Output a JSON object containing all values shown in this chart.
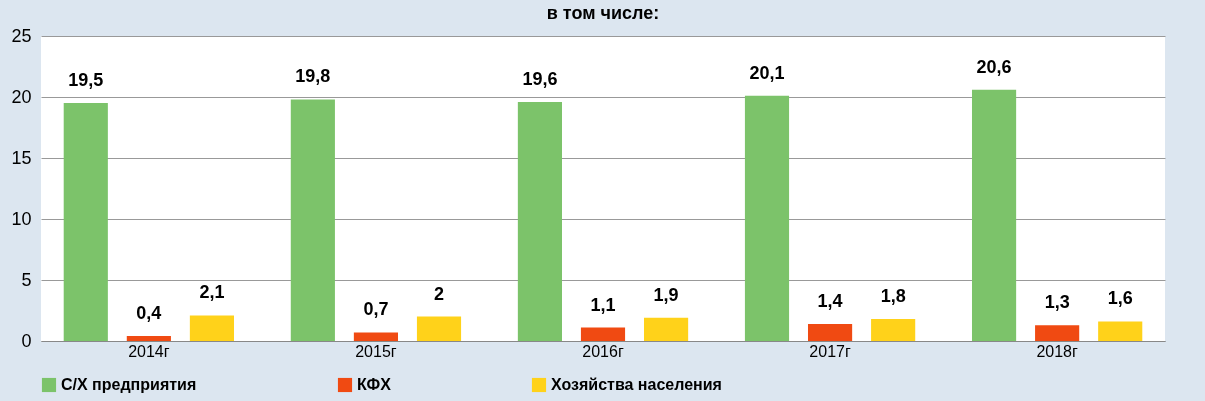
{
  "chart_data": {
    "type": "bar",
    "title": "в том числе:",
    "categories": [
      "2014г",
      "2015г",
      "2016г",
      "2017г",
      "2018г"
    ],
    "series": [
      {
        "name": "С/Х предприятия",
        "color": "#7cc36a",
        "values": [
          19.5,
          19.8,
          19.6,
          20.1,
          20.6
        ],
        "value_labels": [
          "19,5",
          "19,8",
          "19,6",
          "20,1",
          "20,6"
        ]
      },
      {
        "name": "КФХ",
        "color": "#f04a12",
        "values": [
          0.4,
          0.7,
          1.1,
          1.4,
          1.3
        ],
        "value_labels": [
          "0,4",
          "0,7",
          "1,1",
          "1,4",
          "1,3"
        ]
      },
      {
        "name": "Хозяйства населения",
        "color": "#ffd21a",
        "values": [
          2.1,
          2,
          1.9,
          1.8,
          1.6
        ],
        "value_labels": [
          "2,1",
          "2",
          "1,9",
          "1,8",
          "1,6"
        ]
      }
    ],
    "ylim": [
      0,
      25
    ],
    "yticks": [
      0,
      5,
      10,
      15,
      20,
      25
    ],
    "grid": "y",
    "legend": "bottom"
  }
}
